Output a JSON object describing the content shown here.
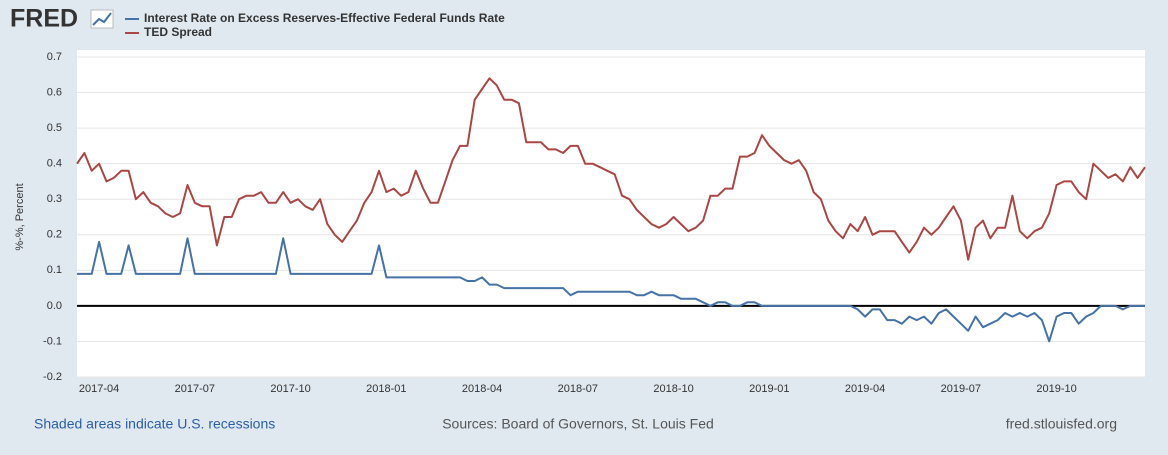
{
  "logo": "FRED",
  "chart_data": {
    "type": "line",
    "y_label": "%-%, Percent",
    "categories": [
      null,
      null,
      null,
      "2017-04",
      null,
      null,
      null,
      null,
      null,
      null,
      null,
      null,
      null,
      null,
      null,
      null,
      "2017-07",
      null,
      null,
      null,
      null,
      null,
      null,
      null,
      null,
      null,
      null,
      null,
      null,
      "2017-10",
      null,
      null,
      null,
      null,
      null,
      null,
      null,
      null,
      null,
      null,
      null,
      null,
      "2018-01",
      null,
      null,
      null,
      null,
      null,
      null,
      null,
      null,
      null,
      null,
      null,
      null,
      "2018-04",
      null,
      null,
      null,
      null,
      null,
      null,
      null,
      null,
      null,
      null,
      null,
      null,
      "2018-07",
      null,
      null,
      null,
      null,
      null,
      null,
      null,
      null,
      null,
      null,
      null,
      null,
      "2018-10",
      null,
      null,
      null,
      null,
      null,
      null,
      null,
      null,
      null,
      null,
      null,
      null,
      "2019-01",
      null,
      null,
      null,
      null,
      null,
      null,
      null,
      null,
      null,
      null,
      null,
      null,
      "2019-04",
      null,
      null,
      null,
      null,
      null,
      null,
      null,
      null,
      null,
      null,
      null,
      null,
      "2019-07",
      null,
      null,
      null,
      null,
      null,
      null,
      null,
      null,
      null,
      null,
      null,
      null,
      "2019-10",
      null,
      null,
      null,
      null,
      null,
      null,
      null,
      null,
      null,
      null,
      null,
      null
    ],
    "series": [
      {
        "name": "Interest Rate on Excess Reserves-Effective Federal Funds Rate",
        "color": "#4572a7",
        "values": [
          0.09,
          0.09,
          0.09,
          0.18,
          0.09,
          0.09,
          0.09,
          0.17,
          0.09,
          0.09,
          0.09,
          0.09,
          0.09,
          0.09,
          0.09,
          0.19,
          0.09,
          0.09,
          0.09,
          0.09,
          0.09,
          0.09,
          0.09,
          0.09,
          0.09,
          0.09,
          0.09,
          0.09,
          0.19,
          0.09,
          0.09,
          0.09,
          0.09,
          0.09,
          0.09,
          0.09,
          0.09,
          0.09,
          0.09,
          0.09,
          0.09,
          0.17,
          0.08,
          0.08,
          0.08,
          0.08,
          0.08,
          0.08,
          0.08,
          0.08,
          0.08,
          0.08,
          0.08,
          0.07,
          0.07,
          0.08,
          0.06,
          0.06,
          0.05,
          0.05,
          0.05,
          0.05,
          0.05,
          0.05,
          0.05,
          0.05,
          0.05,
          0.03,
          0.04,
          0.04,
          0.04,
          0.04,
          0.04,
          0.04,
          0.04,
          0.04,
          0.03,
          0.03,
          0.04,
          0.03,
          0.03,
          0.03,
          0.02,
          0.02,
          0.02,
          0.01,
          0,
          0.01,
          0.01,
          0,
          0,
          0.01,
          0.01,
          0,
          0,
          0,
          0,
          0,
          0,
          0,
          0,
          0,
          0,
          0,
          0,
          0,
          -0.01,
          -0.03,
          -0.01,
          -0.01,
          -0.04,
          -0.04,
          -0.05,
          -0.03,
          -0.04,
          -0.03,
          -0.05,
          -0.02,
          -0.01,
          -0.03,
          -0.05,
          -0.07,
          -0.03,
          -0.06,
          -0.05,
          -0.04,
          -0.02,
          -0.03,
          -0.02,
          -0.03,
          -0.02,
          -0.04,
          -0.1,
          -0.03,
          -0.02,
          -0.02,
          -0.05,
          -0.03,
          -0.02,
          0,
          0,
          0,
          -0.01,
          0,
          0,
          0
        ]
      },
      {
        "name": "TED Spread",
        "color": "#aa4643",
        "values": [
          0.4,
          0.43,
          0.38,
          0.4,
          0.35,
          0.36,
          0.38,
          0.38,
          0.3,
          0.32,
          0.29,
          0.28,
          0.26,
          0.25,
          0.26,
          0.34,
          0.29,
          0.28,
          0.28,
          0.17,
          0.25,
          0.25,
          0.3,
          0.31,
          0.31,
          0.32,
          0.29,
          0.29,
          0.32,
          0.29,
          0.3,
          0.28,
          0.27,
          0.3,
          0.23,
          0.2,
          0.18,
          0.21,
          0.24,
          0.29,
          0.32,
          0.38,
          0.32,
          0.33,
          0.31,
          0.32,
          0.38,
          0.33,
          0.29,
          0.29,
          0.35,
          0.41,
          0.45,
          0.45,
          0.58,
          0.61,
          0.64,
          0.62,
          0.58,
          0.58,
          0.57,
          0.46,
          0.46,
          0.46,
          0.44,
          0.44,
          0.43,
          0.45,
          0.45,
          0.4,
          0.4,
          0.39,
          0.38,
          0.37,
          0.31,
          0.3,
          0.27,
          0.25,
          0.23,
          0.22,
          0.23,
          0.25,
          0.23,
          0.21,
          0.22,
          0.24,
          0.31,
          0.31,
          0.33,
          0.33,
          0.42,
          0.42,
          0.43,
          0.48,
          0.45,
          0.43,
          0.41,
          0.4,
          0.41,
          0.38,
          0.32,
          0.3,
          0.24,
          0.21,
          0.19,
          0.23,
          0.21,
          0.25,
          0.2,
          0.21,
          0.21,
          0.21,
          0.18,
          0.15,
          0.18,
          0.22,
          0.2,
          0.22,
          0.25,
          0.28,
          0.24,
          0.13,
          0.22,
          0.24,
          0.19,
          0.22,
          0.22,
          0.31,
          0.21,
          0.19,
          0.21,
          0.22,
          0.26,
          0.34,
          0.35,
          0.35,
          0.32,
          0.3,
          0.4,
          0.38,
          0.36,
          0.37,
          0.35,
          0.39,
          0.36,
          0.39
        ]
      }
    ],
    "ylim": [
      -0.2,
      0.7
    ],
    "yticks": [
      -0.2,
      -0.1,
      {
        "value": 0,
        "label": "0.0"
      },
      0.1,
      0.2,
      0.3,
      0.4,
      0.5,
      0.6,
      0.7
    ],
    "grid": true,
    "zero_line": true
  },
  "footer": {
    "left": "Shaded areas indicate U.S. recessions",
    "center": "Sources: Board of Governors, St. Louis Fed",
    "right": "fred.stlouisfed.org"
  }
}
